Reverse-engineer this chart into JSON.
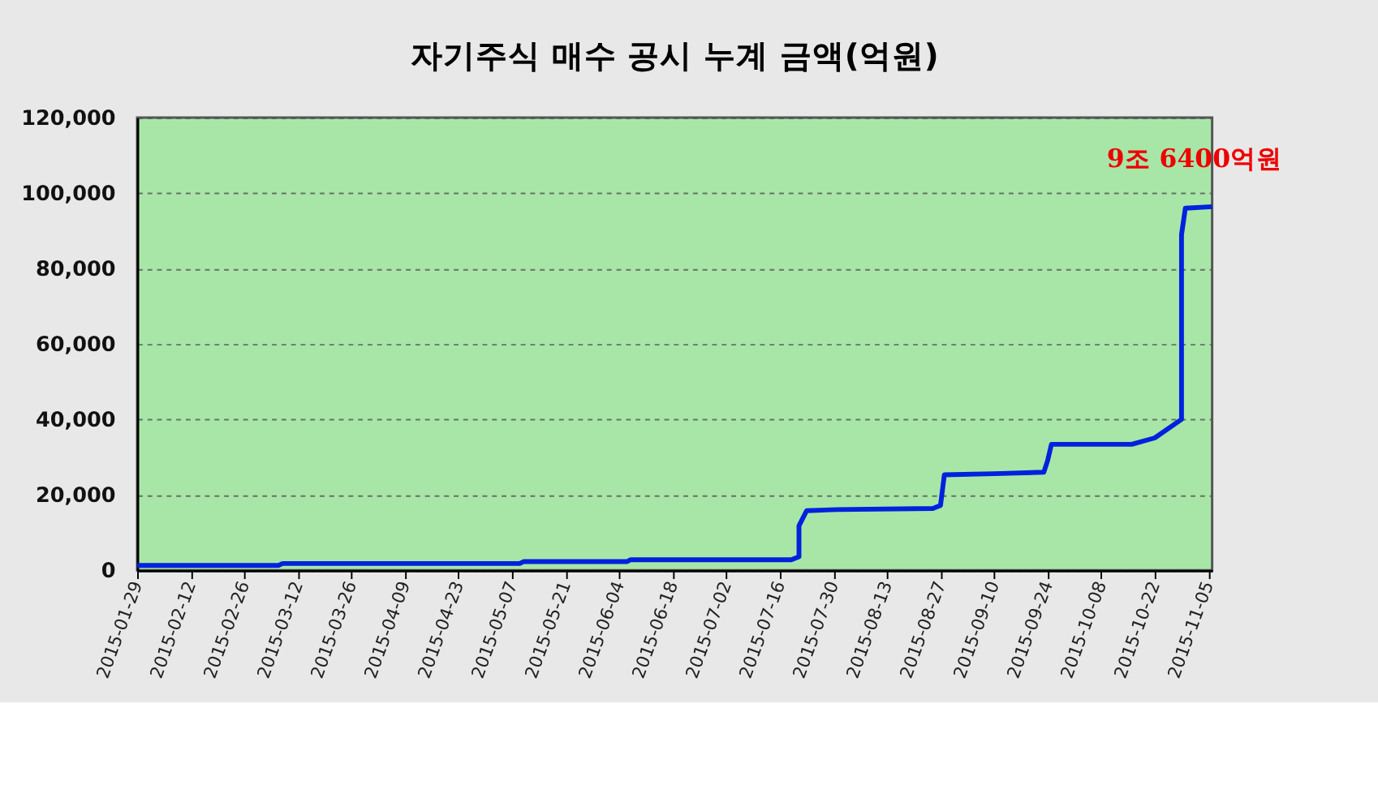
{
  "chart_data": {
    "type": "line",
    "title": "자기주식 매수 공시 누계  금액(억원)",
    "x": [
      "2015-01-29",
      "2015-03-07",
      "2015-03-08",
      "2015-05-09",
      "2015-05-10",
      "2015-06-06",
      "2015-06-07",
      "2015-07-19",
      "2015-07-21",
      "2015-07-21",
      "2015-07-23",
      "2015-07-31",
      "2015-08-25",
      "2015-08-27",
      "2015-08-28",
      "2015-09-10",
      "2015-09-23",
      "2015-09-24",
      "2015-09-25",
      "2015-10-16",
      "2015-10-22",
      "2015-10-29",
      "2015-10-29",
      "2015-10-29",
      "2015-10-29",
      "2015-10-30",
      "2015-11-06"
    ],
    "series": [
      {
        "color": "#0022dd",
        "values": [
          1300,
          1300,
          1800,
          1800,
          2300,
          2300,
          2800,
          2800,
          3600,
          11800,
          15800,
          16100,
          16400,
          17200,
          25300,
          25600,
          26000,
          29100,
          33400,
          33400,
          35100,
          40000,
          53800,
          69300,
          89000,
          96000,
          96400
        ]
      }
    ],
    "xlim": [
      "2015-01-29",
      "2015-11-06"
    ],
    "xticks": [
      "2015-01-29",
      "2015-02-12",
      "2015-02-26",
      "2015-03-12",
      "2015-03-26",
      "2015-04-09",
      "2015-04-23",
      "2015-05-07",
      "2015-05-21",
      "2015-06-04",
      "2015-06-18",
      "2015-07-02",
      "2015-07-16",
      "2015-07-30",
      "2015-08-13",
      "2015-08-27",
      "2015-09-10",
      "2015-09-24",
      "2015-10-08",
      "2015-10-22",
      "2015-11-05"
    ],
    "ylim": [
      0,
      120000
    ],
    "yticks": [
      {
        "value": 0,
        "label": "0"
      },
      {
        "value": 20000,
        "label": "20,000"
      },
      {
        "value": 40000,
        "label": "40,000"
      },
      {
        "value": 60000,
        "label": "60,000"
      },
      {
        "value": 80000,
        "label": "80,000"
      },
      {
        "value": 100000,
        "label": "100,000"
      },
      {
        "value": 120000,
        "label": "120,000"
      }
    ],
    "grid": "y",
    "marker": "none",
    "line_style": "solid",
    "annotations": [
      {
        "text": "9조 6400억원",
        "x": "2015-11-06",
        "y": 96400
      }
    ]
  }
}
